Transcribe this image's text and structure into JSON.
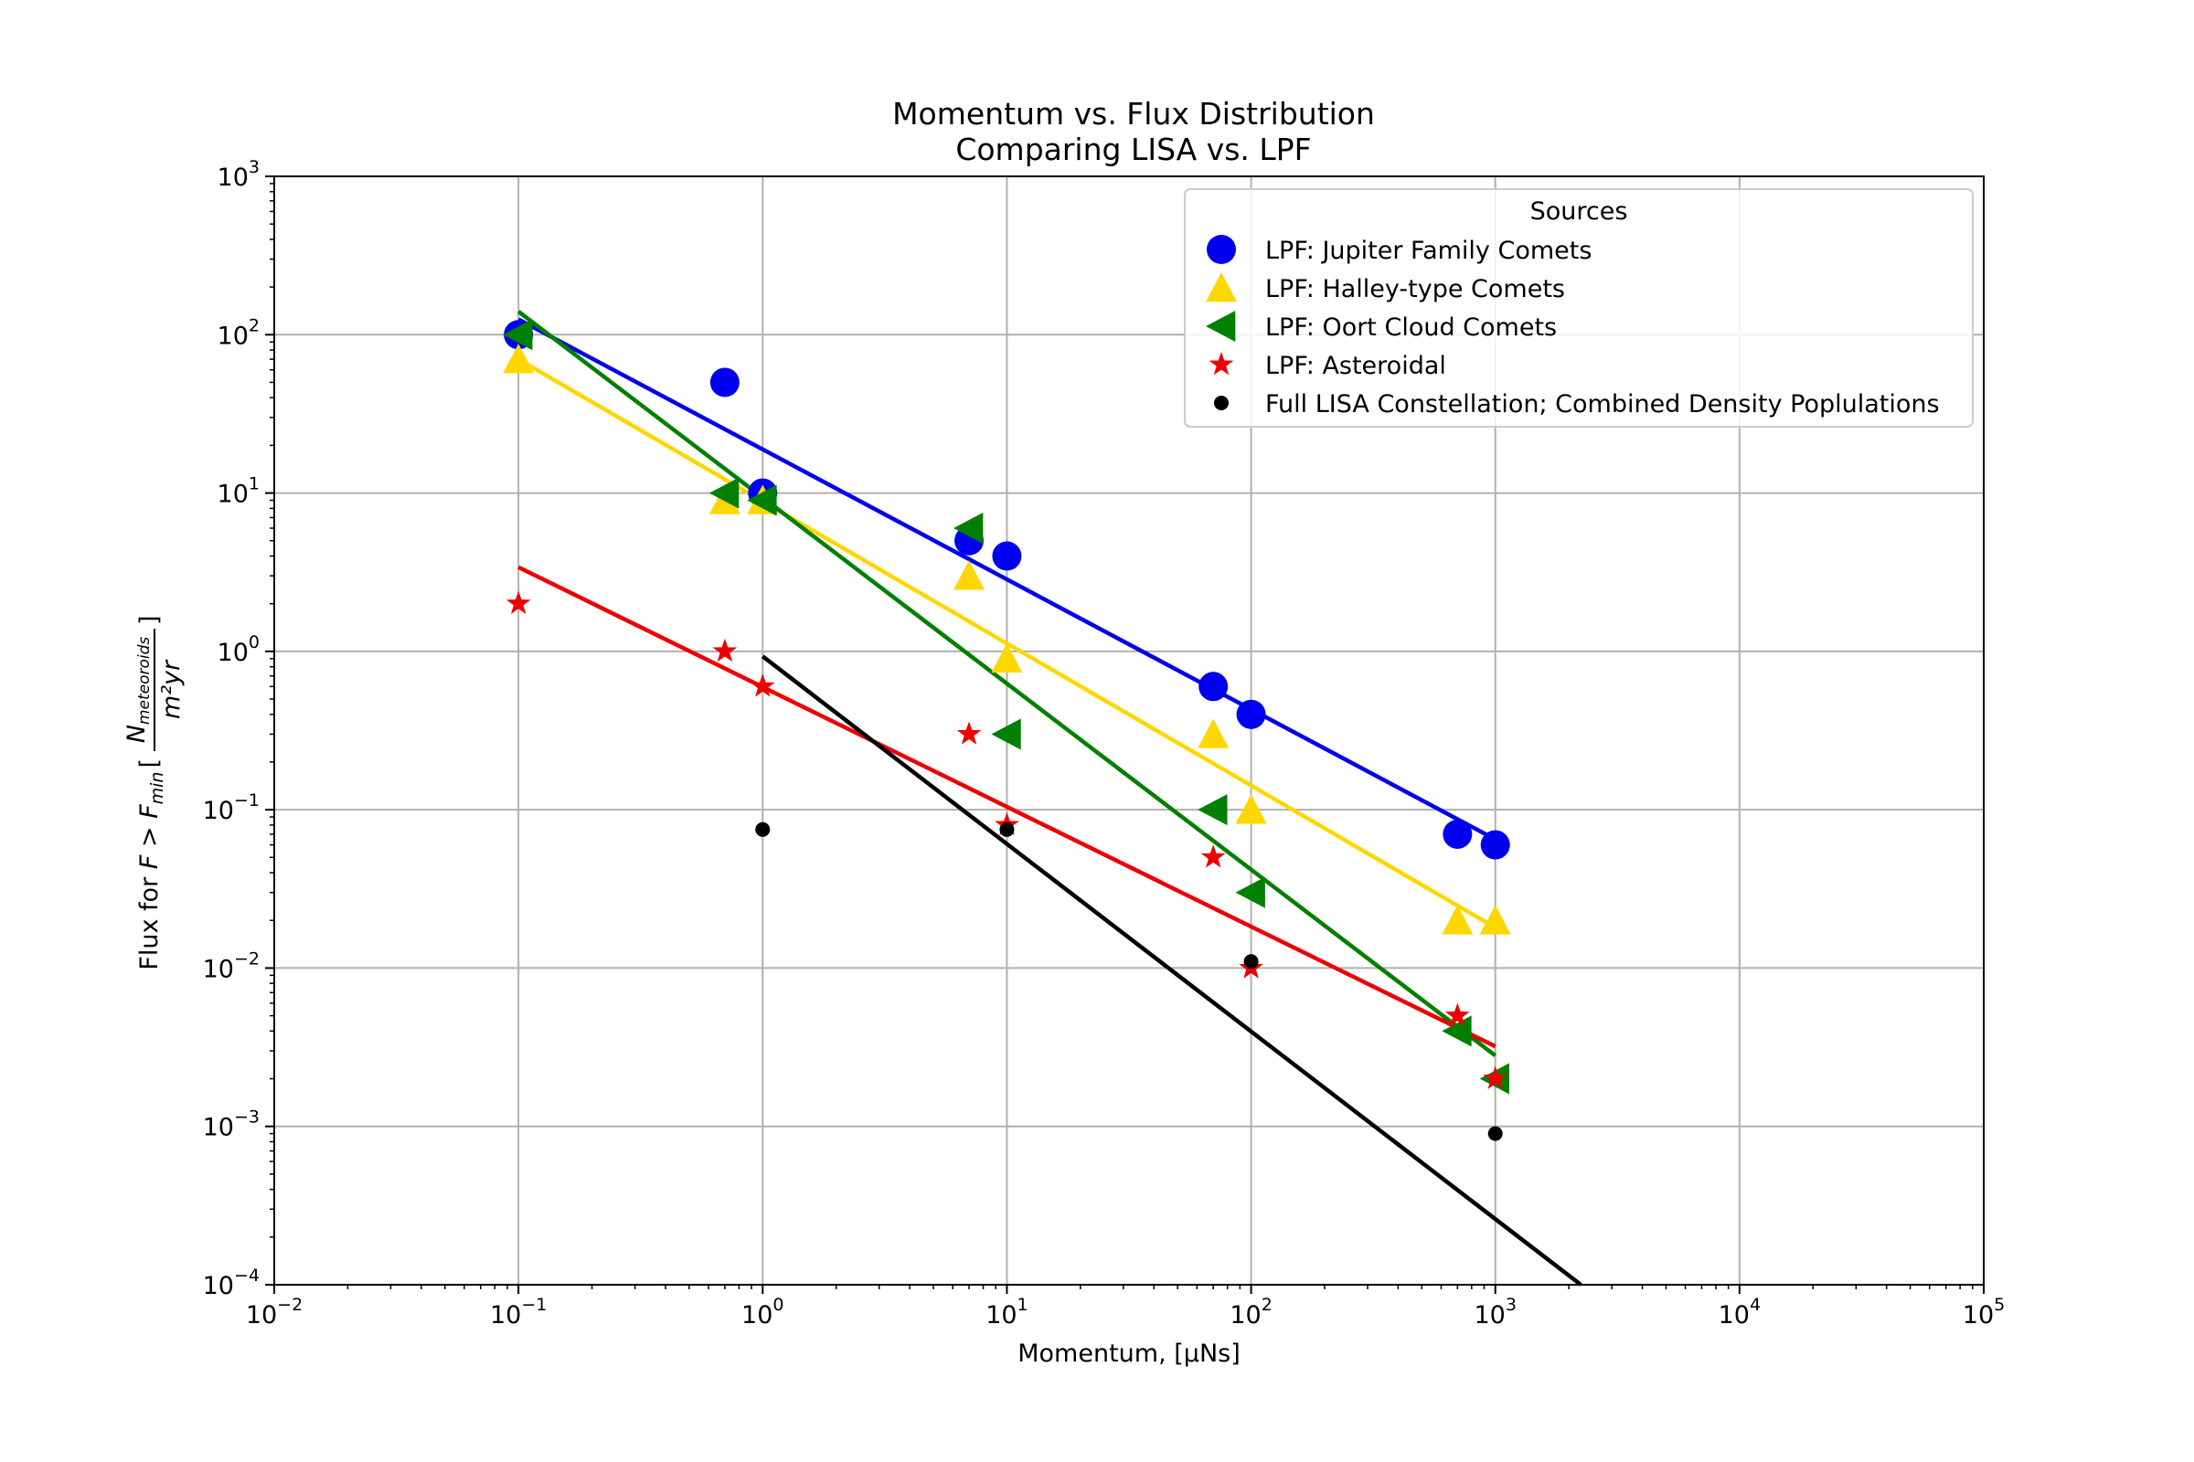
{
  "chart_data": {
    "type": "scatter",
    "title": "Momentum vs. Flux Distribution",
    "subtitle": "Comparing LISA vs. LPF",
    "xlabel": "Momentum, [μNs]",
    "ylabel_parts": {
      "prefix": "Flux for ",
      "math": "F > F",
      "sub": "min",
      "bracket_open": "[",
      "num": "N",
      "num_sub": "meteoroids",
      "den": "m²yr",
      "bracket_close": "]"
    },
    "x_scale": "log",
    "y_scale": "log",
    "xlim": [
      0.01,
      100000
    ],
    "ylim": [
      0.0001,
      1000
    ],
    "x_ticks": [
      {
        "value": 0.01,
        "base": "10",
        "exp": "−2"
      },
      {
        "value": 0.1,
        "base": "10",
        "exp": "−1"
      },
      {
        "value": 1,
        "base": "10",
        "exp": "0"
      },
      {
        "value": 10,
        "base": "10",
        "exp": "1"
      },
      {
        "value": 100,
        "base": "10",
        "exp": "2"
      },
      {
        "value": 1000,
        "base": "10",
        "exp": "3"
      },
      {
        "value": 10000,
        "base": "10",
        "exp": "4"
      },
      {
        "value": 100000,
        "base": "10",
        "exp": "5"
      }
    ],
    "y_ticks": [
      {
        "value": 0.0001,
        "base": "10",
        "exp": "−4"
      },
      {
        "value": 0.001,
        "base": "10",
        "exp": "−3"
      },
      {
        "value": 0.01,
        "base": "10",
        "exp": "−2"
      },
      {
        "value": 0.1,
        "base": "10",
        "exp": "−1"
      },
      {
        "value": 1,
        "base": "10",
        "exp": "0"
      },
      {
        "value": 10,
        "base": "10",
        "exp": "1"
      },
      {
        "value": 100,
        "base": "10",
        "exp": "2"
      },
      {
        "value": 1000,
        "base": "10",
        "exp": "3"
      }
    ],
    "grid": true,
    "legend": {
      "title": "Sources",
      "placement": "top-right"
    },
    "series": [
      {
        "name": "LPF: Jupiter Family Comets",
        "marker": "circle",
        "color": "#0000ee",
        "points": [
          [
            0.1,
            100
          ],
          [
            0.7,
            50
          ],
          [
            1,
            10
          ],
          [
            7,
            5
          ],
          [
            10,
            4
          ],
          [
            70,
            0.6
          ],
          [
            100,
            0.4
          ],
          [
            700,
            0.07
          ],
          [
            1000,
            0.06
          ]
        ],
        "fit": [
          [
            0.1,
            125
          ],
          [
            1000,
            0.065
          ]
        ]
      },
      {
        "name": "LPF: Halley-type Comets",
        "marker": "triangle-up",
        "color": "#ffd700",
        "points": [
          [
            0.1,
            70
          ],
          [
            0.7,
            9
          ],
          [
            1,
            9
          ],
          [
            7,
            3
          ],
          [
            10,
            0.9
          ],
          [
            70,
            0.3
          ],
          [
            100,
            0.1
          ],
          [
            700,
            0.02
          ],
          [
            1000,
            0.02
          ]
        ],
        "fit": [
          [
            0.1,
            70
          ],
          [
            1000,
            0.018
          ]
        ]
      },
      {
        "name": "LPF: Oort Cloud Comets",
        "marker": "triangle-left",
        "color": "#007f00",
        "points": [
          [
            0.1,
            100
          ],
          [
            0.7,
            10
          ],
          [
            1,
            9
          ],
          [
            7,
            6
          ],
          [
            10,
            0.3
          ],
          [
            70,
            0.1
          ],
          [
            100,
            0.03
          ],
          [
            700,
            0.004
          ],
          [
            1000,
            0.002
          ]
        ],
        "fit": [
          [
            0.1,
            140
          ],
          [
            1000,
            0.0028
          ]
        ]
      },
      {
        "name": "LPF: Asteroidal",
        "marker": "star",
        "color": "#ee0000",
        "points": [
          [
            0.1,
            2
          ],
          [
            0.7,
            1
          ],
          [
            1,
            0.6
          ],
          [
            7,
            0.3
          ],
          [
            10,
            0.08
          ],
          [
            70,
            0.05
          ],
          [
            100,
            0.01
          ],
          [
            700,
            0.005
          ],
          [
            1000,
            0.002
          ]
        ],
        "fit": [
          [
            0.1,
            3.4
          ],
          [
            1000,
            0.0032
          ]
        ]
      },
      {
        "name": "Full LISA Constellation; Combined Density Poplulations",
        "marker": "dot",
        "color": "#000000",
        "points": [
          [
            1,
            0.075
          ],
          [
            10,
            0.075
          ],
          [
            100,
            0.011
          ],
          [
            1000,
            0.0009
          ]
        ],
        "fit": [
          [
            1,
            0.93
          ],
          [
            2240,
            0.0001
          ]
        ]
      }
    ]
  }
}
